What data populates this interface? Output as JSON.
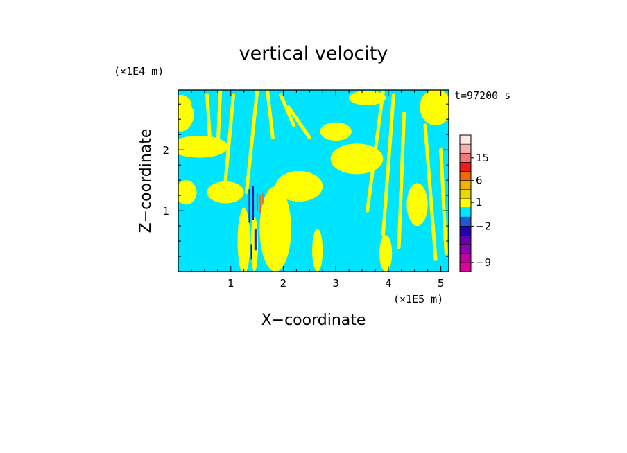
{
  "chart_data": {
    "type": "heatmap",
    "title": "vertical velocity",
    "xlabel": "X−coordinate",
    "ylabel": "Z−coordinate",
    "x_scale_label": "(×1E5 m)",
    "y_scale_label": "(×1E4 m)",
    "time_label": "t=97200 s",
    "xlim": [
      0,
      5.15
    ],
    "ylim": [
      0,
      2.98
    ],
    "x_ticks": [
      1,
      2,
      3,
      4,
      5
    ],
    "x_tick_labels": [
      "1",
      "2",
      "3",
      "4",
      "5"
    ],
    "y_ticks": [
      1,
      2
    ],
    "y_tick_labels": [
      "1",
      "2"
    ],
    "colorbar": {
      "bins": [
        {
          "color": "#e0009a"
        },
        {
          "color": "#c2009e"
        },
        {
          "color": "#8e00b4"
        },
        {
          "color": "#6800b0"
        },
        {
          "color": "#2200b8"
        },
        {
          "color": "#1e5ad2"
        },
        {
          "color": "#00e5ff"
        },
        {
          "color": "#ffff00"
        },
        {
          "color": "#e8d800"
        },
        {
          "color": "#f0b400"
        },
        {
          "color": "#f06a00"
        },
        {
          "color": "#ee1c1c"
        },
        {
          "color": "#f07878"
        },
        {
          "color": "#f4b0b0"
        },
        {
          "color": "#fde8e4"
        }
      ],
      "labels": [
        {
          "text": "−9",
          "bin": 1
        },
        {
          "text": "−2",
          "bin": 5
        },
        {
          "text": "1",
          "bin": 7.6
        },
        {
          "text": "6",
          "bin": 10
        },
        {
          "text": "15",
          "bin": 12.5
        }
      ]
    },
    "field": {
      "background_color": "#00e5ff",
      "positive_color": "#ffff00",
      "negative_strong_color": "#1a1aa8",
      "positive_strong_color": "#e06a20",
      "regions": [
        {
          "x": 0.05,
          "z": 2.6,
          "rx": 0.25,
          "rz": 0.3,
          "sign": "+"
        },
        {
          "x": 0.4,
          "z": 2.05,
          "rx": 0.55,
          "rz": 0.18,
          "sign": "+"
        },
        {
          "x": 0.15,
          "z": 1.3,
          "rx": 0.2,
          "rz": 0.2,
          "sign": "+"
        },
        {
          "x": 0.9,
          "z": 1.3,
          "rx": 0.35,
          "rz": 0.18,
          "sign": "+"
        },
        {
          "x": 1.25,
          "z": 0.5,
          "rx": 0.12,
          "rz": 0.55,
          "sign": "+"
        },
        {
          "x": 1.85,
          "z": 0.7,
          "rx": 0.3,
          "rz": 0.7,
          "sign": "+"
        },
        {
          "x": 2.3,
          "z": 1.4,
          "rx": 0.45,
          "rz": 0.25,
          "sign": "+"
        },
        {
          "x": 3.0,
          "z": 2.3,
          "rx": 0.3,
          "rz": 0.15,
          "sign": "+"
        },
        {
          "x": 3.4,
          "z": 1.85,
          "rx": 0.5,
          "rz": 0.25,
          "sign": "+"
        },
        {
          "x": 3.6,
          "z": 2.85,
          "rx": 0.35,
          "rz": 0.12,
          "sign": "+"
        },
        {
          "x": 4.9,
          "z": 2.7,
          "rx": 0.3,
          "rz": 0.3,
          "sign": "+"
        },
        {
          "x": 4.55,
          "z": 1.1,
          "rx": 0.2,
          "rz": 0.35,
          "sign": "+"
        },
        {
          "x": 2.9,
          "z": 0.85,
          "rx": 0.25,
          "rz": 0.3,
          "sign": "-"
        },
        {
          "x": 1.45,
          "z": 0.45,
          "rx": 0.07,
          "rz": 0.45,
          "sign": "+"
        },
        {
          "x": 3.95,
          "z": 0.3,
          "rx": 0.12,
          "rz": 0.3,
          "sign": "+"
        },
        {
          "x": 2.65,
          "z": 0.35,
          "rx": 0.1,
          "rz": 0.35,
          "sign": "+"
        },
        {
          "x": 0.55,
          "z": 2.75,
          "rx": 0.3,
          "rz": 0.2,
          "sign": "-"
        },
        {
          "x": 4.2,
          "z": 2.3,
          "rx": 0.25,
          "rz": 0.2,
          "sign": "-"
        }
      ],
      "strong_cells": [
        {
          "x": 1.34,
          "z": 0.8,
          "w": 0.03,
          "h": 0.55,
          "sign": "-"
        },
        {
          "x": 1.4,
          "z": 0.85,
          "w": 0.04,
          "h": 0.55,
          "sign": "-"
        },
        {
          "x": 1.45,
          "z": 0.35,
          "w": 0.04,
          "h": 0.35,
          "sign": "-"
        },
        {
          "x": 1.49,
          "z": 1.0,
          "w": 0.03,
          "h": 0.3,
          "sign": "+"
        },
        {
          "x": 1.55,
          "z": 0.95,
          "w": 0.03,
          "h": 0.3,
          "sign": "+"
        },
        {
          "x": 1.38,
          "z": 0.2,
          "w": 0.03,
          "h": 0.25,
          "sign": "-"
        },
        {
          "x": 1.6,
          "z": 1.1,
          "w": 0.02,
          "h": 0.2,
          "sign": "+"
        }
      ]
    }
  }
}
